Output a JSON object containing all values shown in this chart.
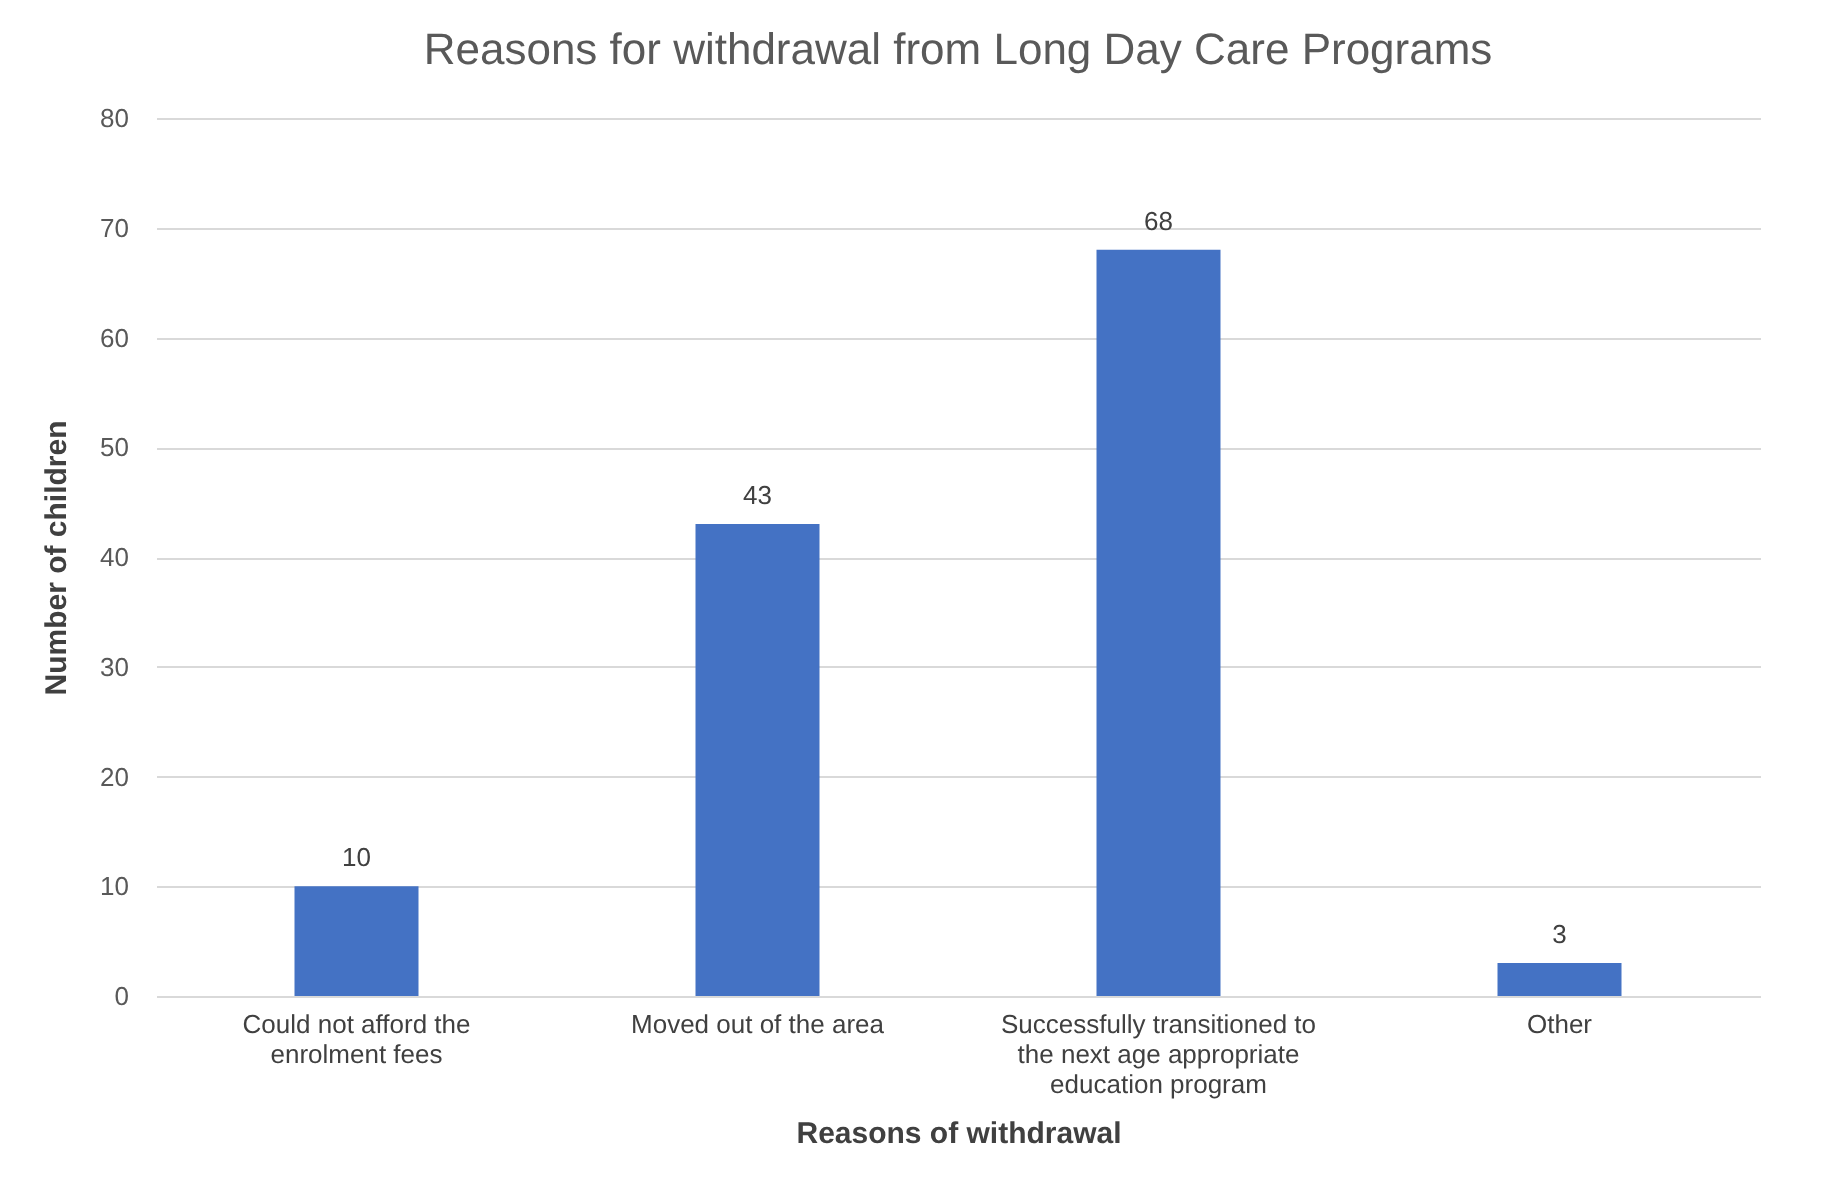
{
  "chart_data": {
    "type": "bar",
    "title": "Reasons for withdrawal from Long Day Care Programs",
    "xlabel": "Reasons of withdrawal",
    "ylabel": "Number of children",
    "categories": [
      "Could not afford the enrolment fees",
      "Moved out of the area",
      "Successfully transitioned to the next age appropriate education program",
      "Other"
    ],
    "values": [
      10,
      43,
      68,
      3
    ],
    "color": "#4472c4",
    "ylim": [
      0,
      80
    ],
    "yticks": [
      0,
      10,
      20,
      30,
      40,
      50,
      60,
      70,
      80
    ],
    "grid": "y",
    "data_labels": true
  }
}
